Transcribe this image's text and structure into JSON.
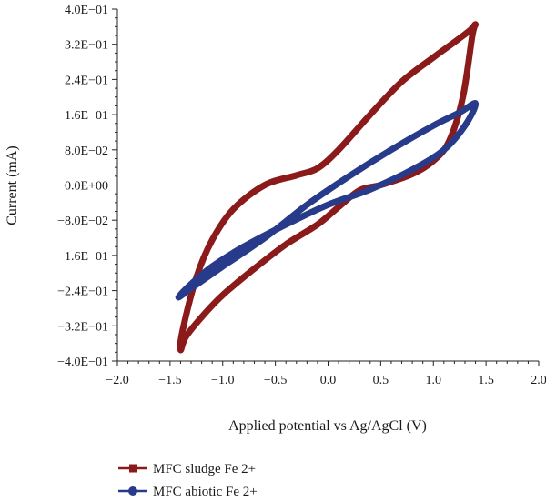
{
  "chart_data": {
    "type": "line",
    "xlabel": "Applied potential vs Ag/AgCl (V)",
    "ylabel": "Current (mA)",
    "xlim": [
      -2.0,
      2.0
    ],
    "ylim": [
      -0.4,
      0.4
    ],
    "x_ticks": [
      -2.0,
      -1.5,
      -1.0,
      -0.5,
      0.0,
      0.5,
      1.0,
      1.5,
      2.0
    ],
    "x_tick_labels": [
      "−2.0",
      "−1.5",
      "−1.0",
      "−0.5",
      "0.0",
      "0.5",
      "1.0",
      "1.5",
      "2.0"
    ],
    "y_ticks": [
      0.4,
      0.32,
      0.24,
      0.16,
      0.08,
      0.0,
      -0.08,
      -0.16,
      -0.24,
      -0.32,
      -0.4
    ],
    "y_tick_labels": [
      "4.0E−01",
      "3.2E−01",
      "2.4E−01",
      "1.6E−01",
      "8.0E−02",
      "0.0E+00",
      "−8.0E−02",
      "−1.6E−01",
      "−2.4E−01",
      "−3.2E−01",
      "−4.0E−01"
    ],
    "grid": false,
    "legend_position": "bottom-left",
    "series": [
      {
        "name": "MFC sludge Fe 2+",
        "color": "#8b1a1a",
        "marker": "square",
        "points": [
          [
            1.4,
            0.365
          ],
          [
            1.37,
            0.34
          ],
          [
            1.28,
            0.2
          ],
          [
            1.15,
            0.1
          ],
          [
            1.0,
            0.055
          ],
          [
            0.8,
            0.025
          ],
          [
            0.5,
            0.0
          ],
          [
            0.3,
            -0.012
          ],
          [
            0.1,
            -0.05
          ],
          [
            -0.1,
            -0.09
          ],
          [
            -0.4,
            -0.135
          ],
          [
            -0.7,
            -0.19
          ],
          [
            -1.0,
            -0.25
          ],
          [
            -1.2,
            -0.3
          ],
          [
            -1.35,
            -0.345
          ],
          [
            -1.4,
            -0.375
          ],
          [
            -1.38,
            -0.33
          ],
          [
            -1.25,
            -0.21
          ],
          [
            -1.1,
            -0.125
          ],
          [
            -0.9,
            -0.055
          ],
          [
            -0.6,
            0.0
          ],
          [
            -0.3,
            0.022
          ],
          [
            -0.1,
            0.038
          ],
          [
            0.1,
            0.08
          ],
          [
            0.4,
            0.16
          ],
          [
            0.7,
            0.235
          ],
          [
            1.0,
            0.29
          ],
          [
            1.2,
            0.325
          ],
          [
            1.35,
            0.352
          ],
          [
            1.4,
            0.365
          ]
        ]
      },
      {
        "name": "MFC abiotic Fe 2+",
        "color": "#283a8a",
        "marker": "circle",
        "points": [
          [
            1.4,
            0.185
          ],
          [
            1.3,
            0.135
          ],
          [
            1.1,
            0.08
          ],
          [
            0.8,
            0.035
          ],
          [
            0.4,
            -0.01
          ],
          [
            0.0,
            -0.045
          ],
          [
            -0.4,
            -0.09
          ],
          [
            -0.8,
            -0.14
          ],
          [
            -1.1,
            -0.185
          ],
          [
            -1.3,
            -0.225
          ],
          [
            -1.42,
            -0.255
          ],
          [
            -1.3,
            -0.235
          ],
          [
            -1.0,
            -0.185
          ],
          [
            -0.6,
            -0.12
          ],
          [
            -0.2,
            -0.045
          ],
          [
            0.2,
            0.02
          ],
          [
            0.6,
            0.08
          ],
          [
            1.0,
            0.135
          ],
          [
            1.25,
            0.165
          ],
          [
            1.4,
            0.185
          ]
        ]
      }
    ]
  }
}
